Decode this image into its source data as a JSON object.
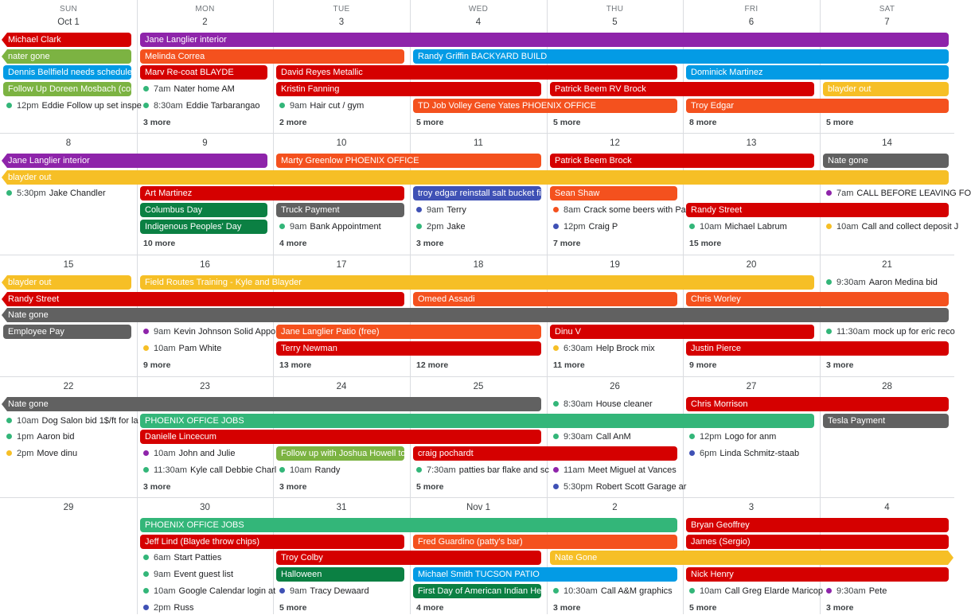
{
  "colors": {
    "purple": "#8e24aa",
    "orange": "#f4511e",
    "red": "#d50000",
    "lime": "#7cb342",
    "green": "#33b679",
    "blue": "#039be5",
    "lavender": "#7986cb",
    "yellow": "#f6bf26",
    "graphite": "#616161",
    "basil": "#0b8043",
    "tomato": "#d50000",
    "peacock": "#039be5",
    "darkblue": "#3f51b5"
  },
  "weekdays": [
    "SUN",
    "MON",
    "TUE",
    "WED",
    "THU",
    "FRI",
    "SAT"
  ],
  "weeks": [
    {
      "dates": [
        "Oct 1",
        "2",
        "3",
        "4",
        "5",
        "6",
        "7"
      ],
      "spans": [
        {
          "row": 0,
          "start": 0,
          "end": 0,
          "title": "Michael Clark",
          "color": "red",
          "contL": true
        },
        {
          "row": 0,
          "start": 1,
          "end": 6,
          "title": "Jane Langlier interior",
          "color": "purple"
        },
        {
          "row": 1,
          "start": 0,
          "end": 0,
          "title": "nater gone",
          "color": "lime",
          "contL": true
        },
        {
          "row": 1,
          "start": 1,
          "end": 2,
          "title": "Melinda Correa",
          "color": "orange"
        },
        {
          "row": 1,
          "start": 3,
          "end": 6,
          "title": "Randy Griffin BACKYARD BUILD",
          "color": "blue"
        },
        {
          "row": 2,
          "start": 0,
          "end": 0,
          "title": "Dennis Bellfield needs scheduled",
          "color": "blue"
        },
        {
          "row": 2,
          "start": 1,
          "end": 1,
          "title": "Marv Re-coat BLAYDE",
          "color": "red"
        },
        {
          "row": 2,
          "start": 2,
          "end": 4,
          "title": "David Reyes Metallic",
          "color": "red"
        },
        {
          "row": 2,
          "start": 5,
          "end": 6,
          "title": "Dominick Martinez",
          "color": "blue"
        },
        {
          "row": 3,
          "start": 0,
          "end": 0,
          "title": "Follow Up Doreen Mosbach (con",
          "color": "lime"
        },
        {
          "row": 3,
          "start": 2,
          "end": 3,
          "title": "Kristin Fanning",
          "color": "red"
        },
        {
          "row": 3,
          "start": 4,
          "end": 5,
          "title": "Patrick Beem RV Brock",
          "color": "red"
        },
        {
          "row": 3,
          "start": 6,
          "end": 6,
          "title": "blayder out",
          "color": "yellow"
        },
        {
          "row": 4,
          "start": 3,
          "end": 4,
          "title": "TD Job Volley Gene Yates PHOENIX OFFICE",
          "color": "orange"
        },
        {
          "row": 4,
          "start": 5,
          "end": 6,
          "title": "Troy Edgar",
          "color": "orange"
        }
      ],
      "timed": [
        {
          "row": 4,
          "col": 0,
          "time": "12pm",
          "title": "Eddie Follow up set inspe",
          "color": "green"
        },
        {
          "row": 3,
          "col": 1,
          "time": "7am",
          "title": "Nater home AM",
          "color": "green"
        },
        {
          "row": 4,
          "col": 1,
          "time": "8:30am",
          "title": "Eddie Tarbarangao",
          "color": "green"
        },
        {
          "row": 4,
          "col": 2,
          "time": "9am",
          "title": "Hair cut / gym",
          "color": "green"
        }
      ],
      "more": [
        {
          "col": 1,
          "text": "3 more"
        },
        {
          "col": 2,
          "text": "2 more"
        },
        {
          "col": 3,
          "text": "5 more"
        },
        {
          "col": 4,
          "text": "5 more"
        },
        {
          "col": 5,
          "text": "8 more"
        },
        {
          "col": 6,
          "text": "5 more"
        }
      ]
    },
    {
      "dates": [
        "8",
        "9",
        "10",
        "11",
        "12",
        "13",
        "14"
      ],
      "spans": [
        {
          "row": 0,
          "start": 0,
          "end": 1,
          "title": "Jane Langlier interior",
          "color": "purple",
          "contL": true
        },
        {
          "row": 0,
          "start": 2,
          "end": 3,
          "title": "Marty Greenlow PHOENIX OFFICE",
          "color": "orange"
        },
        {
          "row": 0,
          "start": 4,
          "end": 5,
          "title": "Patrick Beem Brock",
          "color": "red"
        },
        {
          "row": 0,
          "start": 6,
          "end": 6,
          "title": "Nate gone",
          "color": "graphite"
        },
        {
          "row": 1,
          "start": 0,
          "end": 6,
          "title": "blayder out",
          "color": "yellow",
          "contL": true
        },
        {
          "row": 2,
          "start": 1,
          "end": 2,
          "title": "Art Martinez",
          "color": "red"
        },
        {
          "row": 2,
          "start": 3,
          "end": 3,
          "title": "troy edgar reinstall salt bucket fi",
          "color": "darkblue"
        },
        {
          "row": 2,
          "start": 4,
          "end": 4,
          "title": "Sean Shaw",
          "color": "orange"
        },
        {
          "row": 3,
          "start": 1,
          "end": 1,
          "title": "Columbus Day",
          "color": "basil"
        },
        {
          "row": 3,
          "start": 2,
          "end": 2,
          "title": "Truck Payment",
          "color": "graphite"
        },
        {
          "row": 3,
          "start": 5,
          "end": 6,
          "title": "Randy Street",
          "color": "red"
        },
        {
          "row": 4,
          "start": 1,
          "end": 1,
          "title": "Indigenous Peoples' Day",
          "color": "basil"
        }
      ],
      "timed": [
        {
          "row": 2,
          "col": 0,
          "time": "5:30pm",
          "title": "Jake Chandler",
          "color": "green"
        },
        {
          "row": 2,
          "col": 6,
          "time": "7am",
          "title": "CALL BEFORE LEAVING FO",
          "color": "purple"
        },
        {
          "row": 3,
          "col": 3,
          "time": "9am",
          "title": "Terry",
          "color": "darkblue"
        },
        {
          "row": 3,
          "col": 4,
          "time": "8am",
          "title": "Crack some beers with Pa",
          "color": "orange"
        },
        {
          "row": 4,
          "col": 2,
          "time": "9am",
          "title": "Bank Appointment",
          "color": "green"
        },
        {
          "row": 4,
          "col": 3,
          "time": "2pm",
          "title": "Jake",
          "color": "green"
        },
        {
          "row": 4,
          "col": 4,
          "time": "12pm",
          "title": "Craig P",
          "color": "darkblue"
        },
        {
          "row": 4,
          "col": 5,
          "time": "10am",
          "title": "Michael Labrum",
          "color": "green"
        },
        {
          "row": 4,
          "col": 6,
          "time": "10am",
          "title": "Call and collect deposit J",
          "color": "yellow"
        }
      ],
      "more": [
        {
          "col": 1,
          "text": "10 more"
        },
        {
          "col": 2,
          "text": "4 more"
        },
        {
          "col": 3,
          "text": "3 more"
        },
        {
          "col": 4,
          "text": "7 more"
        },
        {
          "col": 5,
          "text": "15 more"
        }
      ]
    },
    {
      "dates": [
        "15",
        "16",
        "17",
        "18",
        "19",
        "20",
        "21"
      ],
      "spans": [
        {
          "row": 0,
          "start": 0,
          "end": 0,
          "title": "blayder out",
          "color": "yellow",
          "contL": true
        },
        {
          "row": 0,
          "start": 1,
          "end": 5,
          "title": "Field Routes Training - Kyle and Blayder",
          "color": "yellow"
        },
        {
          "row": 1,
          "start": 0,
          "end": 2,
          "title": "Randy Street",
          "color": "red",
          "contL": true
        },
        {
          "row": 1,
          "start": 3,
          "end": 4,
          "title": "Omeed Assadi",
          "color": "orange"
        },
        {
          "row": 1,
          "start": 5,
          "end": 6,
          "title": "Chris Worley",
          "color": "orange"
        },
        {
          "row": 2,
          "start": 0,
          "end": 6,
          "title": "Nate gone",
          "color": "graphite",
          "contL": true
        },
        {
          "row": 3,
          "start": 0,
          "end": 0,
          "title": "Employee Pay",
          "color": "graphite"
        },
        {
          "row": 3,
          "start": 2,
          "end": 3,
          "title": "Jane Langlier Patio (free)",
          "color": "orange"
        },
        {
          "row": 3,
          "start": 4,
          "end": 5,
          "title": "Dinu V",
          "color": "red"
        },
        {
          "row": 4,
          "start": 2,
          "end": 3,
          "title": "Terry Newman",
          "color": "red"
        },
        {
          "row": 4,
          "start": 5,
          "end": 6,
          "title": "Justin Pierce",
          "color": "red"
        }
      ],
      "timed": [
        {
          "row": 0,
          "col": 6,
          "time": "9:30am",
          "title": "Aaron Medina bid",
          "color": "green"
        },
        {
          "row": 3,
          "col": 1,
          "time": "9am",
          "title": "Kevin Johnson Solid Appo",
          "color": "purple"
        },
        {
          "row": 3,
          "col": 6,
          "time": "11:30am",
          "title": "mock up for eric reco",
          "color": "green"
        },
        {
          "row": 4,
          "col": 1,
          "time": "10am",
          "title": "Pam White",
          "color": "yellow"
        },
        {
          "row": 4,
          "col": 4,
          "time": "6:30am",
          "title": "Help Brock mix",
          "color": "yellow"
        }
      ],
      "more": [
        {
          "col": 1,
          "text": "9 more"
        },
        {
          "col": 2,
          "text": "13 more"
        },
        {
          "col": 3,
          "text": "12 more"
        },
        {
          "col": 4,
          "text": "11 more"
        },
        {
          "col": 5,
          "text": "9 more"
        },
        {
          "col": 6,
          "text": "3 more"
        }
      ]
    },
    {
      "dates": [
        "22",
        "23",
        "24",
        "25",
        "26",
        "27",
        "28"
      ],
      "spans": [
        {
          "row": 0,
          "start": 0,
          "end": 3,
          "title": "Nate gone",
          "color": "graphite",
          "contL": true
        },
        {
          "row": 0,
          "start": 5,
          "end": 6,
          "title": "Chris Morrison",
          "color": "red"
        },
        {
          "row": 1,
          "start": 1,
          "end": 5,
          "title": "PHOENIX OFFICE JOBS",
          "color": "green"
        },
        {
          "row": 1,
          "start": 6,
          "end": 6,
          "title": "Tesla Payment",
          "color": "graphite"
        },
        {
          "row": 2,
          "start": 1,
          "end": 3,
          "title": "Danielle Lincecum",
          "color": "red"
        },
        {
          "row": 3,
          "start": 2,
          "end": 2,
          "title": "Follow up with Joshua Howell to",
          "color": "lime"
        },
        {
          "row": 3,
          "start": 3,
          "end": 4,
          "title": "craig pochardt",
          "color": "red"
        }
      ],
      "timed": [
        {
          "row": 1,
          "col": 0,
          "time": "10am",
          "title": "Dog Salon bid 1$/ft for la",
          "color": "green"
        },
        {
          "row": 0,
          "col": 4,
          "time": "8:30am",
          "title": "House cleaner",
          "color": "green"
        },
        {
          "row": 2,
          "col": 0,
          "time": "1pm",
          "title": "Aaron bid",
          "color": "green"
        },
        {
          "row": 2,
          "col": 4,
          "time": "9:30am",
          "title": "Call AnM",
          "color": "green"
        },
        {
          "row": 2,
          "col": 5,
          "time": "12pm",
          "title": "Logo for anm",
          "color": "green"
        },
        {
          "row": 3,
          "col": 0,
          "time": "2pm",
          "title": "Move dinu",
          "color": "yellow"
        },
        {
          "row": 3,
          "col": 1,
          "time": "10am",
          "title": "John and Julie",
          "color": "purple"
        },
        {
          "row": 3,
          "col": 5,
          "time": "6pm",
          "title": "Linda Schmitz-staab",
          "color": "darkblue"
        },
        {
          "row": 4,
          "col": 1,
          "time": "11:30am",
          "title": "Kyle call Debbie Charl",
          "color": "green"
        },
        {
          "row": 4,
          "col": 2,
          "time": "10am",
          "title": "Randy",
          "color": "green"
        },
        {
          "row": 4,
          "col": 3,
          "time": "7:30am",
          "title": "patties bar flake and sc",
          "color": "green"
        },
        {
          "row": 4,
          "col": 4,
          "time": "11am",
          "title": "Meet Miguel at Vances",
          "color": "purple"
        },
        {
          "row": 5,
          "col": 4,
          "time": "5:30pm",
          "title": "Robert Scott Garage ar",
          "color": "darkblue"
        }
      ],
      "more": [
        {
          "col": 1,
          "text": "3 more"
        },
        {
          "col": 2,
          "text": "3 more"
        },
        {
          "col": 3,
          "text": "5 more"
        }
      ]
    },
    {
      "dates": [
        "29",
        "30",
        "31",
        "Nov 1",
        "2",
        "3",
        "4"
      ],
      "spans": [
        {
          "row": 0,
          "start": 1,
          "end": 4,
          "title": "PHOENIX OFFICE JOBS",
          "color": "green"
        },
        {
          "row": 0,
          "start": 5,
          "end": 6,
          "title": "Bryan Geoffrey",
          "color": "red"
        },
        {
          "row": 1,
          "start": 1,
          "end": 2,
          "title": "Jeff Lind (Blayde throw chips)",
          "color": "red"
        },
        {
          "row": 1,
          "start": 3,
          "end": 4,
          "title": "Fred Guardino (patty's bar)",
          "color": "orange"
        },
        {
          "row": 1,
          "start": 5,
          "end": 6,
          "title": "James (Sergio)",
          "color": "red"
        },
        {
          "row": 2,
          "start": 2,
          "end": 3,
          "title": "Troy Colby",
          "color": "red"
        },
        {
          "row": 2,
          "start": 4,
          "end": 6,
          "title": "Nate Gone",
          "color": "yellow",
          "contR": true
        },
        {
          "row": 3,
          "start": 2,
          "end": 2,
          "title": "Halloween",
          "color": "basil"
        },
        {
          "row": 3,
          "start": 3,
          "end": 4,
          "title": "Michael Smith TUCSON PATIO",
          "color": "blue"
        },
        {
          "row": 3,
          "start": 5,
          "end": 6,
          "title": "Nick Henry",
          "color": "red"
        },
        {
          "row": 4,
          "start": 3,
          "end": 3,
          "title": "First Day of American Indian Her",
          "color": "basil"
        }
      ],
      "timed": [
        {
          "row": 2,
          "col": 1,
          "time": "6am",
          "title": "Start Patties",
          "color": "green"
        },
        {
          "row": 3,
          "col": 1,
          "time": "9am",
          "title": "Event guest list",
          "color": "green"
        },
        {
          "row": 4,
          "col": 1,
          "time": "10am",
          "title": "Google Calendar login at",
          "color": "green"
        },
        {
          "row": 4,
          "col": 2,
          "time": "9am",
          "title": "Tracy Dewaard",
          "color": "darkblue"
        },
        {
          "row": 4,
          "col": 4,
          "time": "10:30am",
          "title": "Call A&M graphics",
          "color": "green"
        },
        {
          "row": 4,
          "col": 5,
          "time": "10am",
          "title": "Call Greg Elarde Maricop",
          "color": "green"
        },
        {
          "row": 4,
          "col": 6,
          "time": "9:30am",
          "title": "Pete",
          "color": "purple"
        },
        {
          "row": 5,
          "col": 1,
          "time": "2pm",
          "title": "Russ",
          "color": "darkblue"
        }
      ],
      "more": [
        {
          "col": 2,
          "text": "5 more"
        },
        {
          "col": 3,
          "text": "4 more"
        },
        {
          "col": 4,
          "text": "3 more"
        },
        {
          "col": 5,
          "text": "5 more"
        },
        {
          "col": 6,
          "text": "3 more"
        }
      ]
    }
  ]
}
